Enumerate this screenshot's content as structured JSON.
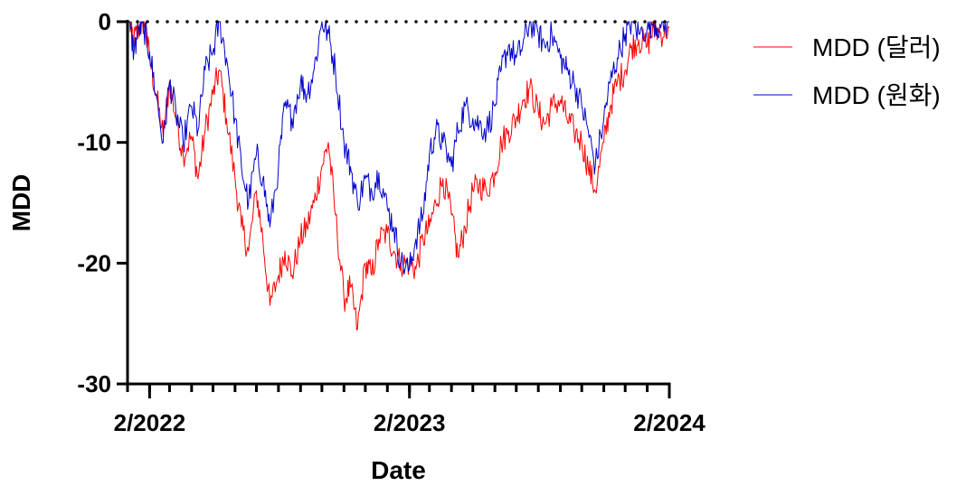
{
  "chart_data": {
    "type": "line",
    "xlabel": "Date",
    "ylabel": "MDD",
    "ylim": [
      -30,
      0
    ],
    "yticks": [
      0,
      -10,
      -20,
      -30
    ],
    "x_tick_labels": [
      "2/2022",
      "2/2023",
      "2/2024"
    ],
    "x_tick_dates": [
      "2022-02",
      "2023-02",
      "2024-02"
    ],
    "x_range": [
      "2022-01",
      "2024-02"
    ],
    "zero_line": "dotted",
    "legend_position": "top-right",
    "series": [
      {
        "name": "MDD (달러)",
        "color": "#ff0000",
        "points": [
          [
            "2022-01-03",
            0
          ],
          [
            "2022-01-10",
            -1.5
          ],
          [
            "2022-01-17",
            -0.5
          ],
          [
            "2022-01-24",
            0
          ],
          [
            "2022-02-01",
            -3
          ],
          [
            "2022-02-10",
            -6
          ],
          [
            "2022-02-20",
            -9.5
          ],
          [
            "2022-03-01",
            -5
          ],
          [
            "2022-03-10",
            -8
          ],
          [
            "2022-03-20",
            -11
          ],
          [
            "2022-04-01",
            -9.5
          ],
          [
            "2022-04-10",
            -13
          ],
          [
            "2022-04-20",
            -9
          ],
          [
            "2022-05-01",
            -6
          ],
          [
            "2022-05-10",
            -4
          ],
          [
            "2022-05-20",
            -8
          ],
          [
            "2022-06-01",
            -13
          ],
          [
            "2022-06-10",
            -17
          ],
          [
            "2022-06-20",
            -19
          ],
          [
            "2022-07-01",
            -14
          ],
          [
            "2022-07-10",
            -18
          ],
          [
            "2022-07-20",
            -23.5
          ],
          [
            "2022-08-01",
            -21
          ],
          [
            "2022-08-10",
            -19
          ],
          [
            "2022-08-20",
            -21
          ],
          [
            "2022-09-01",
            -18
          ],
          [
            "2022-09-10",
            -17
          ],
          [
            "2022-09-20",
            -15
          ],
          [
            "2022-10-01",
            -12
          ],
          [
            "2022-10-10",
            -10
          ],
          [
            "2022-10-20",
            -16
          ],
          [
            "2022-11-01",
            -23
          ],
          [
            "2022-11-10",
            -22
          ],
          [
            "2022-11-20",
            -25.5
          ],
          [
            "2022-12-01",
            -20
          ],
          [
            "2022-12-10",
            -21
          ],
          [
            "2022-12-20",
            -18
          ],
          [
            "2023-01-01",
            -17.5
          ],
          [
            "2023-01-10",
            -19
          ],
          [
            "2023-01-20",
            -20
          ],
          [
            "2023-02-01",
            -20
          ],
          [
            "2023-02-10",
            -20.5
          ],
          [
            "2023-02-20",
            -18
          ],
          [
            "2023-03-01",
            -17
          ],
          [
            "2023-03-10",
            -15
          ],
          [
            "2023-03-20",
            -13
          ],
          [
            "2023-04-01",
            -16
          ],
          [
            "2023-04-10",
            -19.5
          ],
          [
            "2023-04-20",
            -17
          ],
          [
            "2023-05-01",
            -14
          ],
          [
            "2023-05-10",
            -13.5
          ],
          [
            "2023-05-20",
            -14
          ],
          [
            "2023-06-01",
            -12.5
          ],
          [
            "2023-06-10",
            -10
          ],
          [
            "2023-06-20",
            -9
          ],
          [
            "2023-07-01",
            -8
          ],
          [
            "2023-07-10",
            -6.5
          ],
          [
            "2023-07-20",
            -5.5
          ],
          [
            "2023-08-01",
            -7.5
          ],
          [
            "2023-08-10",
            -8.5
          ],
          [
            "2023-08-20",
            -7
          ],
          [
            "2023-09-01",
            -6.5
          ],
          [
            "2023-09-10",
            -8
          ],
          [
            "2023-09-20",
            -9
          ],
          [
            "2023-10-01",
            -10
          ],
          [
            "2023-10-10",
            -12
          ],
          [
            "2023-10-20",
            -14
          ],
          [
            "2023-11-01",
            -10
          ],
          [
            "2023-11-10",
            -7
          ],
          [
            "2023-11-20",
            -5
          ],
          [
            "2023-12-01",
            -4
          ],
          [
            "2023-12-10",
            -2
          ],
          [
            "2023-12-20",
            -1.5
          ],
          [
            "2024-01-01",
            -2
          ],
          [
            "2024-01-10",
            -0.5
          ],
          [
            "2024-01-20",
            -1
          ],
          [
            "2024-02-01",
            -0.5
          ]
        ]
      },
      {
        "name": "MDD (원화)",
        "color": "#0000cc",
        "points": [
          [
            "2022-01-03",
            0
          ],
          [
            "2022-01-10",
            -2.5
          ],
          [
            "2022-01-17",
            -0.5
          ],
          [
            "2022-01-24",
            -0.5
          ],
          [
            "2022-02-01",
            -2.5
          ],
          [
            "2022-02-10",
            -6
          ],
          [
            "2022-02-20",
            -10
          ],
          [
            "2022-03-01",
            -5
          ],
          [
            "2022-03-10",
            -7.5
          ],
          [
            "2022-03-20",
            -10
          ],
          [
            "2022-04-01",
            -7
          ],
          [
            "2022-04-10",
            -9
          ],
          [
            "2022-04-20",
            -4
          ],
          [
            "2022-05-01",
            -2.5
          ],
          [
            "2022-05-10",
            0
          ],
          [
            "2022-05-20",
            -3
          ],
          [
            "2022-06-01",
            -8
          ],
          [
            "2022-06-10",
            -12
          ],
          [
            "2022-06-20",
            -15
          ],
          [
            "2022-07-01",
            -11
          ],
          [
            "2022-07-10",
            -13
          ],
          [
            "2022-07-20",
            -17
          ],
          [
            "2022-08-01",
            -12
          ],
          [
            "2022-08-10",
            -7
          ],
          [
            "2022-08-20",
            -8
          ],
          [
            "2022-09-01",
            -5
          ],
          [
            "2022-09-10",
            -6
          ],
          [
            "2022-09-20",
            -4
          ],
          [
            "2022-10-01",
            0
          ],
          [
            "2022-10-10",
            -1
          ],
          [
            "2022-10-20",
            -4
          ],
          [
            "2022-11-01",
            -10
          ],
          [
            "2022-11-10",
            -12
          ],
          [
            "2022-11-20",
            -15
          ],
          [
            "2022-12-01",
            -13
          ],
          [
            "2022-12-10",
            -14
          ],
          [
            "2022-12-20",
            -12.5
          ],
          [
            "2023-01-01",
            -15.5
          ],
          [
            "2023-01-10",
            -17
          ],
          [
            "2023-01-20",
            -20
          ],
          [
            "2023-02-01",
            -20.5
          ],
          [
            "2023-02-10",
            -18
          ],
          [
            "2023-02-20",
            -16
          ],
          [
            "2023-03-01",
            -11
          ],
          [
            "2023-03-10",
            -9
          ],
          [
            "2023-03-20",
            -10
          ],
          [
            "2023-04-01",
            -12
          ],
          [
            "2023-04-10",
            -9
          ],
          [
            "2023-04-20",
            -7
          ],
          [
            "2023-05-01",
            -8
          ],
          [
            "2023-05-10",
            -8.5
          ],
          [
            "2023-05-20",
            -9
          ],
          [
            "2023-06-01",
            -7
          ],
          [
            "2023-06-10",
            -4
          ],
          [
            "2023-06-20",
            -2
          ],
          [
            "2023-07-01",
            -3
          ],
          [
            "2023-07-10",
            -2
          ],
          [
            "2023-07-20",
            0
          ],
          [
            "2023-08-01",
            -1
          ],
          [
            "2023-08-10",
            -2
          ],
          [
            "2023-08-20",
            -1
          ],
          [
            "2023-09-01",
            -3
          ],
          [
            "2023-09-10",
            -4
          ],
          [
            "2023-09-20",
            -5
          ],
          [
            "2023-10-01",
            -7
          ],
          [
            "2023-10-10",
            -9
          ],
          [
            "2023-10-20",
            -12
          ],
          [
            "2023-11-01",
            -8
          ],
          [
            "2023-11-10",
            -5
          ],
          [
            "2023-11-20",
            -3
          ],
          [
            "2023-12-01",
            -1
          ],
          [
            "2023-12-10",
            0
          ],
          [
            "2023-12-20",
            -1
          ],
          [
            "2024-01-01",
            -0.5
          ],
          [
            "2024-01-10",
            0
          ],
          [
            "2024-01-20",
            -0.5
          ],
          [
            "2024-02-01",
            0
          ]
        ]
      }
    ]
  }
}
